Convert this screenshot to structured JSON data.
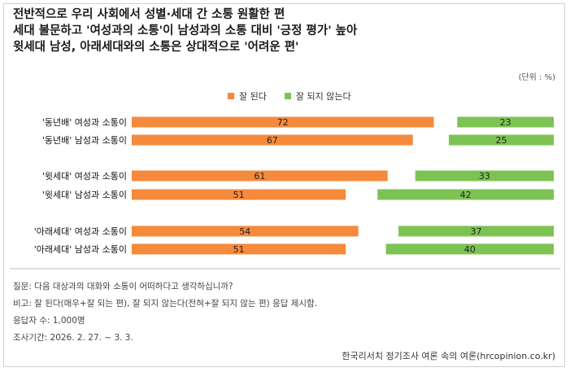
{
  "title_lines": [
    "전반적으로 우리 사회에서 성별·세대 간 소통 원활한 편",
    "세대 불문하고 '여성과의 소통'이 남성과의 소통 대비 '긍정 평가' 높아",
    "윗세대 남성, 아래세대와의 소통은 상대적으로 '어려운 편'"
  ],
  "unit_label": "(단위 : %)",
  "colors": {
    "positive": "#f58a3c",
    "negative": "#7cc353"
  },
  "chart_data": {
    "type": "bar",
    "orientation": "horizontal",
    "stacked": false,
    "categories": [
      "'동년배' 여성과 소통이",
      "'동년배' 남성과 소통이",
      "'윗세대' 여성과 소통이",
      "'윗세대' 남성과 소통이",
      "'아래세대' 여성과 소통이",
      "'아래세대' 남성과 소통이"
    ],
    "groups": [
      [
        0,
        1
      ],
      [
        2,
        3
      ],
      [
        4,
        5
      ]
    ],
    "series": [
      {
        "name": "잘 된다",
        "values": [
          72,
          67,
          61,
          51,
          54,
          51
        ]
      },
      {
        "name": "잘 되지 않는다",
        "values": [
          23,
          25,
          33,
          42,
          37,
          40
        ]
      }
    ],
    "legend_position": "top-center",
    "grid": false
  },
  "notes": [
    "질문: 다음 대상과의 대화와 소통이 어떠하다고 생각하십니까?",
    "비고: 잘 된다(매우+잘 되는 편), 잘 되지 않는다(전혀+잘 되지 않는 편) 응답 제시함.",
    "응답자 수: 1,000명",
    "조사기간: 2026. 2. 27. ~ 3. 3."
  ],
  "source": "한국리서치 정기조사 여론 속의 여론(hrcopinion.co.kr)"
}
